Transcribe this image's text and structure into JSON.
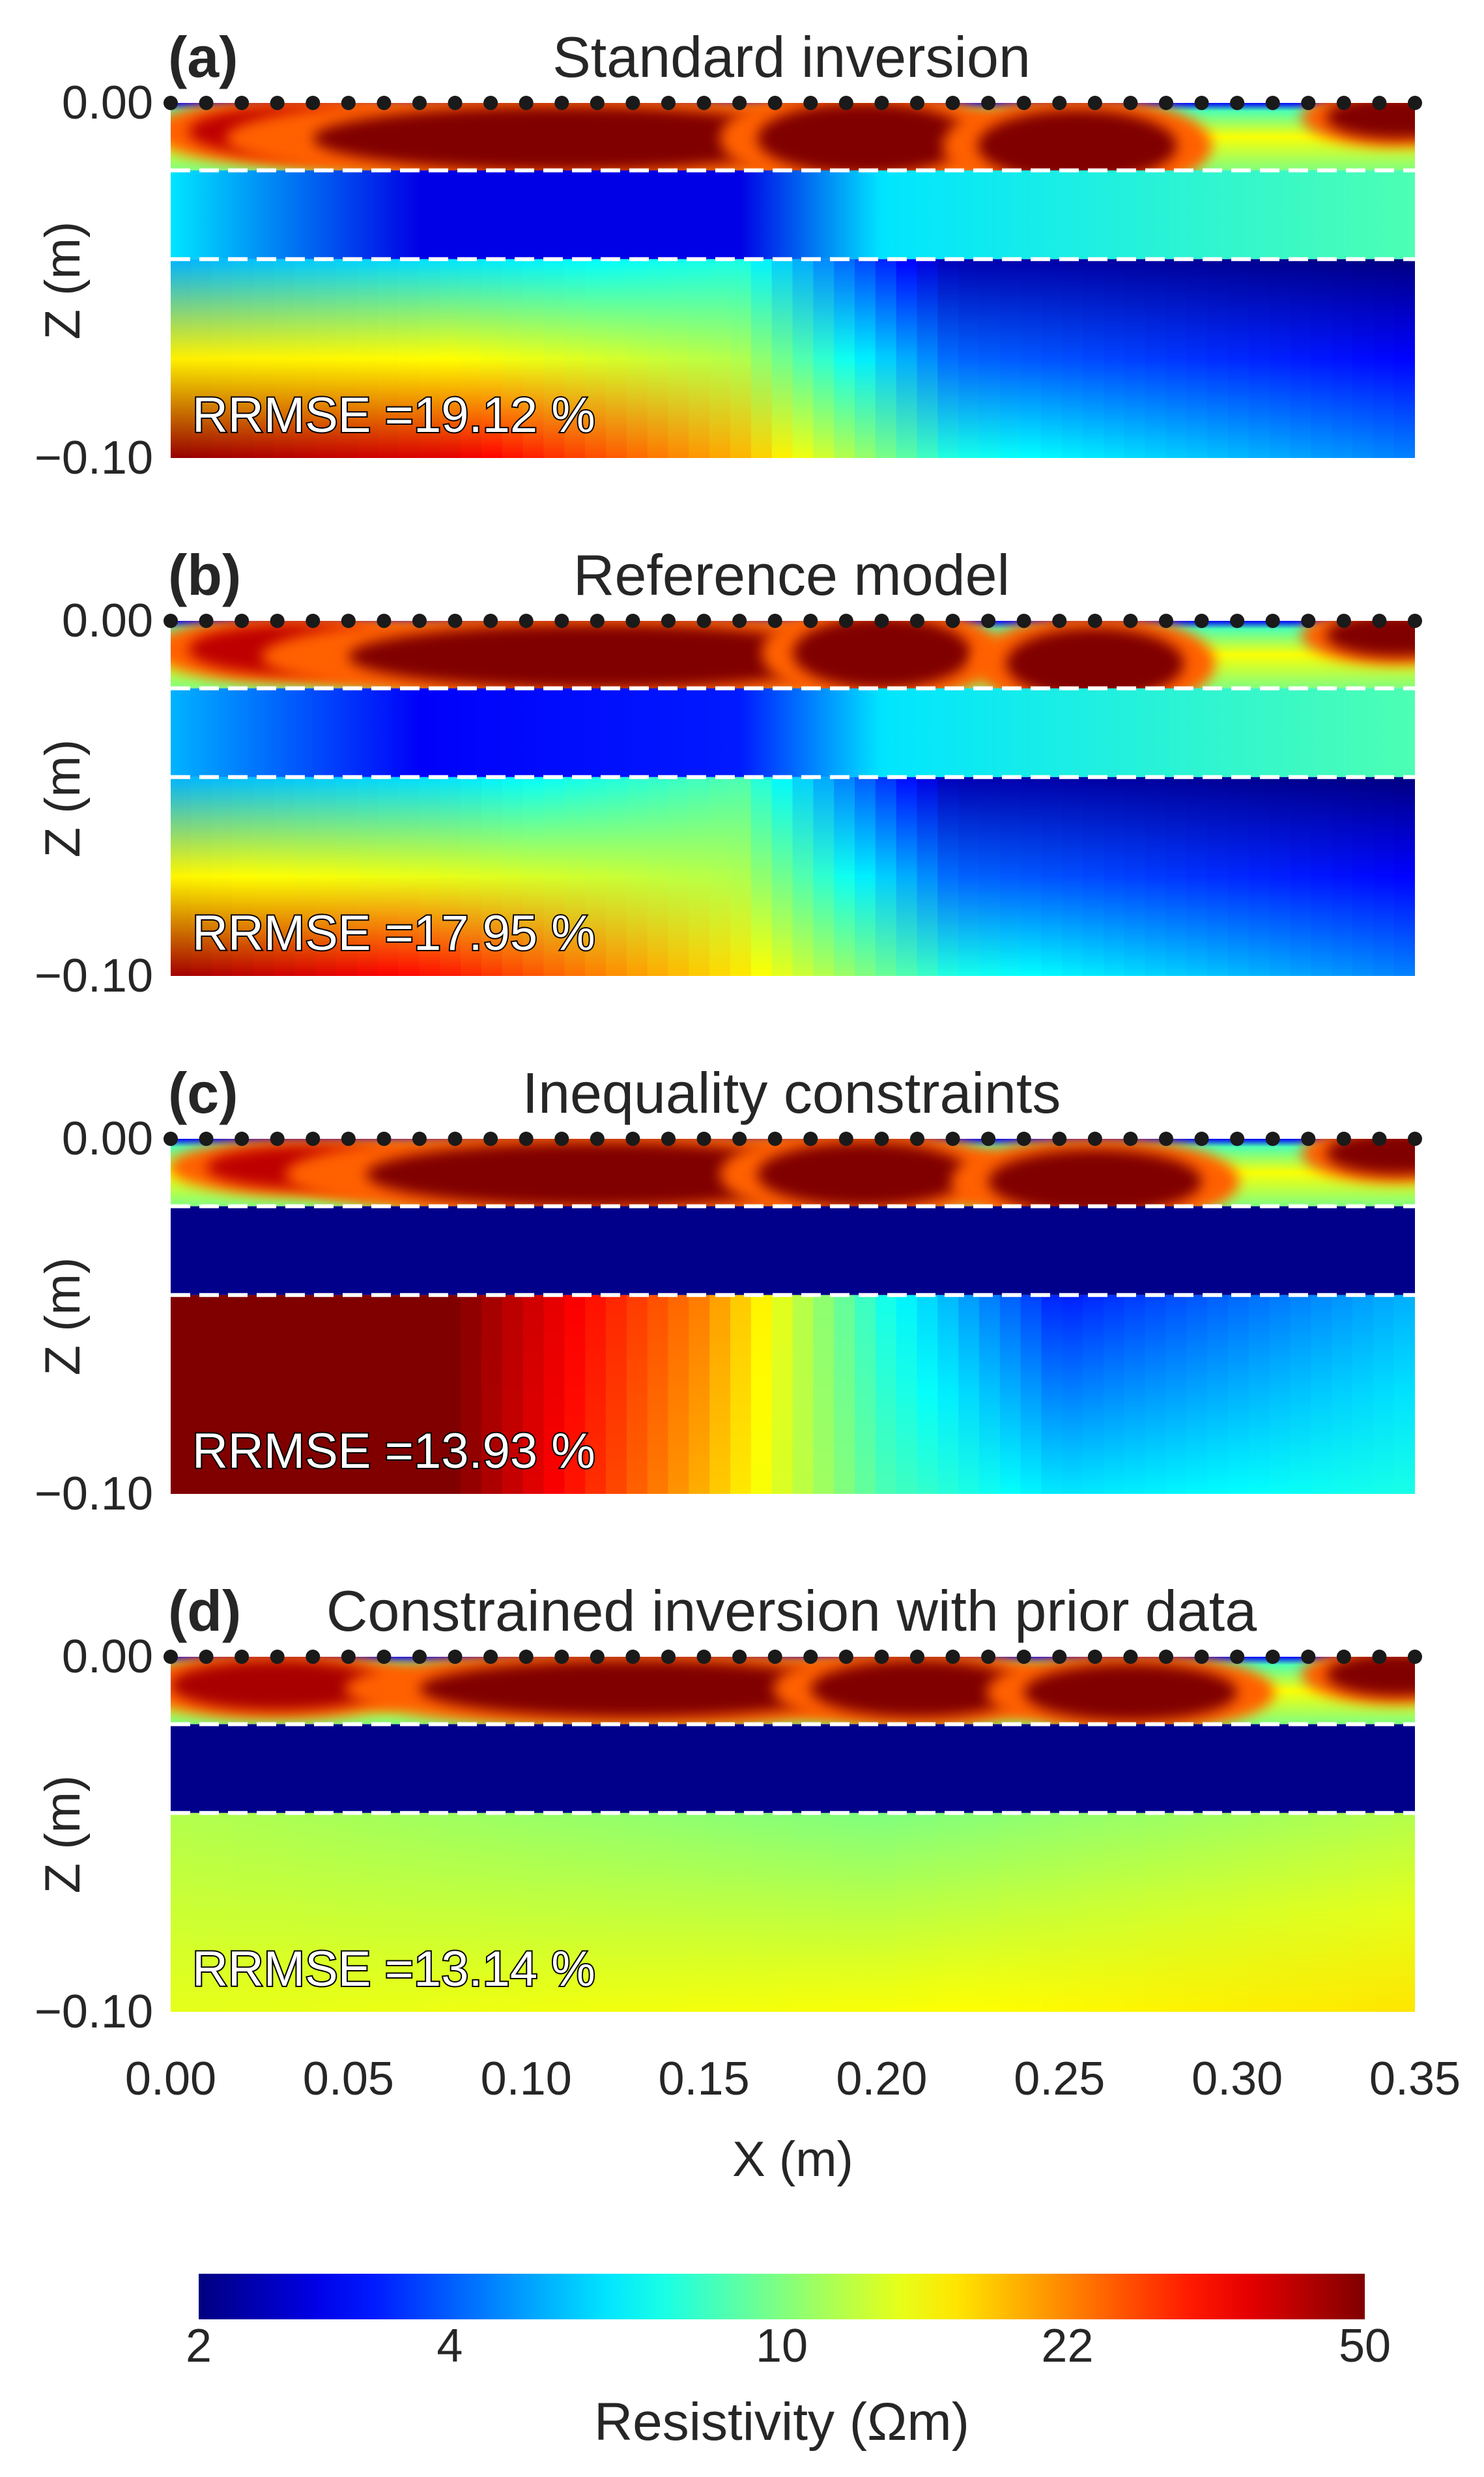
{
  "chart_data": {
    "type": "heatmap",
    "panels": [
      {
        "letter": "(a)",
        "title": "Standard inversion",
        "rrmse_text": "RRMSE =19.12 %",
        "boundaries_z": [
          -0.019,
          -0.044
        ],
        "blobs_shallow": [
          {
            "x": 0.035,
            "z": -0.008,
            "level": 0.85,
            "w": 0.03,
            "h": 0.007
          },
          {
            "x": 0.11,
            "z": -0.01,
            "level": 1.0,
            "w": 0.07,
            "h": 0.009
          },
          {
            "x": 0.195,
            "z": -0.01,
            "level": 1.0,
            "w": 0.03,
            "h": 0.01
          },
          {
            "x": 0.255,
            "z": -0.012,
            "level": 1.0,
            "w": 0.028,
            "h": 0.01
          },
          {
            "x": 0.345,
            "z": -0.004,
            "level": 1.0,
            "w": 0.02,
            "h": 0.006
          }
        ],
        "middle": [
          {
            "x": 0.0,
            "level": 0.35
          },
          {
            "x": 0.07,
            "level": 0.1
          },
          {
            "x": 0.16,
            "level": 0.1
          },
          {
            "x": 0.2,
            "level": 0.35
          },
          {
            "x": 0.35,
            "level": 0.45
          }
        ],
        "deep": [
          {
            "x": 0.0,
            "top": 0.3,
            "bottom": 0.98
          },
          {
            "x": 0.08,
            "top": 0.35,
            "bottom": 0.9
          },
          {
            "x": 0.16,
            "top": 0.4,
            "bottom": 0.7
          },
          {
            "x": 0.22,
            "top": 0.05,
            "bottom": 0.4
          },
          {
            "x": 0.35,
            "top": 0.0,
            "bottom": 0.25
          }
        ]
      },
      {
        "letter": "(b)",
        "title": "Reference model",
        "rrmse_text": "RRMSE =17.95 %",
        "boundaries_z": [
          -0.019,
          -0.044
        ],
        "blobs_shallow": [
          {
            "x": 0.035,
            "z": -0.008,
            "level": 0.85,
            "w": 0.03,
            "h": 0.007
          },
          {
            "x": 0.12,
            "z": -0.01,
            "level": 1.0,
            "w": 0.07,
            "h": 0.009
          },
          {
            "x": 0.2,
            "z": -0.009,
            "level": 1.0,
            "w": 0.025,
            "h": 0.01
          },
          {
            "x": 0.26,
            "z": -0.012,
            "level": 1.0,
            "w": 0.025,
            "h": 0.01
          },
          {
            "x": 0.345,
            "z": -0.004,
            "level": 1.0,
            "w": 0.02,
            "h": 0.006
          }
        ],
        "middle": [
          {
            "x": 0.0,
            "level": 0.3
          },
          {
            "x": 0.07,
            "level": 0.12
          },
          {
            "x": 0.16,
            "level": 0.15
          },
          {
            "x": 0.2,
            "level": 0.35
          },
          {
            "x": 0.35,
            "level": 0.45
          }
        ],
        "deep": [
          {
            "x": 0.0,
            "top": 0.3,
            "bottom": 0.97
          },
          {
            "x": 0.08,
            "top": 0.35,
            "bottom": 0.85
          },
          {
            "x": 0.16,
            "top": 0.45,
            "bottom": 0.65
          },
          {
            "x": 0.22,
            "top": 0.05,
            "bottom": 0.4
          },
          {
            "x": 0.35,
            "top": 0.0,
            "bottom": 0.25
          }
        ]
      },
      {
        "letter": "(c)",
        "title": "Inequality constraints",
        "rrmse_text": "RRMSE =13.93 %",
        "boundaries_z": [
          -0.019,
          -0.044
        ],
        "blobs_shallow": [
          {
            "x": 0.04,
            "z": -0.008,
            "level": 0.85,
            "w": 0.03,
            "h": 0.006
          },
          {
            "x": 0.12,
            "z": -0.01,
            "level": 1.0,
            "w": 0.065,
            "h": 0.009
          },
          {
            "x": 0.195,
            "z": -0.01,
            "level": 1.0,
            "w": 0.03,
            "h": 0.009
          },
          {
            "x": 0.26,
            "z": -0.012,
            "level": 1.0,
            "w": 0.03,
            "h": 0.009
          },
          {
            "x": 0.345,
            "z": -0.004,
            "level": 1.0,
            "w": 0.02,
            "h": 0.006
          }
        ],
        "middle": [
          {
            "x": 0.0,
            "level": 0.01
          },
          {
            "x": 0.35,
            "level": 0.01
          }
        ],
        "deep": [
          {
            "x": 0.0,
            "top": 1.0,
            "bottom": 1.0
          },
          {
            "x": 0.08,
            "top": 1.0,
            "bottom": 1.0
          },
          {
            "x": 0.15,
            "top": 0.75,
            "bottom": 0.7
          },
          {
            "x": 0.2,
            "top": 0.4,
            "bottom": 0.45
          },
          {
            "x": 0.25,
            "top": 0.15,
            "bottom": 0.35
          },
          {
            "x": 0.35,
            "top": 0.3,
            "bottom": 0.4
          }
        ]
      },
      {
        "letter": "(d)",
        "title": "Constrained inversion with prior data",
        "rrmse_text": "RRMSE =13.14 %",
        "boundaries_z": [
          -0.019,
          -0.044
        ],
        "blobs_shallow": [
          {
            "x": 0.03,
            "z": -0.008,
            "level": 0.9,
            "w": 0.03,
            "h": 0.007
          },
          {
            "x": 0.13,
            "z": -0.009,
            "level": 1.0,
            "w": 0.06,
            "h": 0.008
          },
          {
            "x": 0.21,
            "z": -0.009,
            "level": 1.0,
            "w": 0.03,
            "h": 0.008
          },
          {
            "x": 0.27,
            "z": -0.01,
            "level": 1.0,
            "w": 0.03,
            "h": 0.008
          },
          {
            "x": 0.345,
            "z": -0.005,
            "level": 1.0,
            "w": 0.02,
            "h": 0.006
          }
        ],
        "middle": [
          {
            "x": 0.0,
            "level": 0.01
          },
          {
            "x": 0.35,
            "level": 0.01
          }
        ],
        "deep": [
          {
            "x": 0.0,
            "top": 0.55,
            "bottom": 0.6
          },
          {
            "x": 0.2,
            "top": 0.5,
            "bottom": 0.62
          },
          {
            "x": 0.35,
            "top": 0.55,
            "bottom": 0.65
          }
        ]
      }
    ],
    "x_range": [
      0.0,
      0.35
    ],
    "z_range": [
      -0.1,
      0.0
    ],
    "x_ticks": [
      "0.00",
      "0.05",
      "0.10",
      "0.15",
      "0.20",
      "0.25",
      "0.30",
      "0.35"
    ],
    "x_tick_values": [
      0.0,
      0.05,
      0.1,
      0.15,
      0.2,
      0.25,
      0.3,
      0.35
    ],
    "z_ticks": [
      "0.00",
      "−0.10"
    ],
    "z_tick_values": [
      0.0,
      -0.1
    ],
    "xlabel": "X (m)",
    "ylabel": "Z (m)",
    "electrodes": {
      "count": 36,
      "x_start": 0.0,
      "x_end": 0.35
    },
    "colorbar": {
      "label": "Resistivity (Ωm)",
      "ticks": [
        "2",
        "4",
        "10",
        "22",
        "50"
      ],
      "tick_values": [
        2,
        4,
        10,
        22,
        50
      ],
      "scale": "log",
      "range": [
        2,
        50
      ],
      "colormap": "jet"
    }
  },
  "colors": {
    "text": "#262626",
    "electrode": "#1a1a1a",
    "boundary": "#ffffff"
  }
}
